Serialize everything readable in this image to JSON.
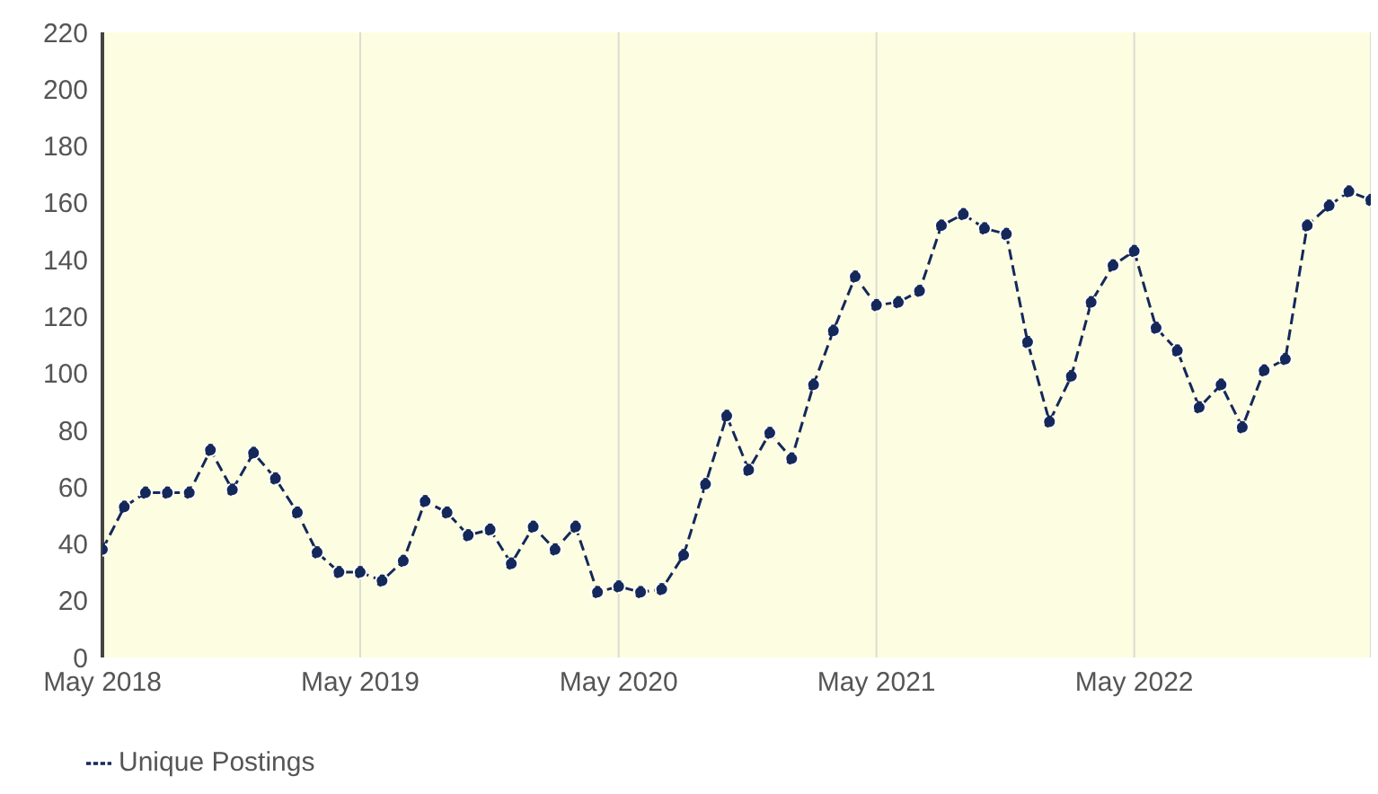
{
  "chart_data": {
    "type": "line",
    "x": [
      "2018-05",
      "2018-06",
      "2018-07",
      "2018-08",
      "2018-09",
      "2018-10",
      "2018-11",
      "2018-12",
      "2019-01",
      "2019-02",
      "2019-03",
      "2019-04",
      "2019-05",
      "2019-06",
      "2019-07",
      "2019-08",
      "2019-09",
      "2019-10",
      "2019-11",
      "2019-12",
      "2020-01",
      "2020-02",
      "2020-03",
      "2020-04",
      "2020-05",
      "2020-06",
      "2020-07",
      "2020-08",
      "2020-09",
      "2020-10",
      "2020-11",
      "2020-12",
      "2021-01",
      "2021-02",
      "2021-03",
      "2021-04",
      "2021-05",
      "2021-06",
      "2021-07",
      "2021-08",
      "2021-09",
      "2021-10",
      "2021-11",
      "2021-12",
      "2022-01",
      "2022-02",
      "2022-03",
      "2022-04",
      "2022-05",
      "2022-06",
      "2022-07",
      "2022-08",
      "2022-09",
      "2022-10",
      "2022-11",
      "2022-12",
      "2023-01",
      "2023-02",
      "2023-03",
      "2023-04"
    ],
    "series": [
      {
        "name": "Unique Postings",
        "color": "#14285a",
        "values": [
          38,
          53,
          58,
          58,
          58,
          73,
          59,
          72,
          63,
          51,
          37,
          30,
          30,
          27,
          34,
          55,
          51,
          43,
          45,
          33,
          46,
          38,
          46,
          23,
          25,
          23,
          24,
          36,
          61,
          85,
          66,
          79,
          70,
          96,
          115,
          134,
          124,
          125,
          129,
          152,
          156,
          151,
          149,
          111,
          83,
          99,
          125,
          138,
          143,
          116,
          108,
          88,
          96,
          81,
          101,
          105,
          152,
          159,
          164,
          161
        ]
      }
    ],
    "xlim": [
      "2018-05",
      "2023-04"
    ],
    "xticks": [
      {
        "value": "2018-05",
        "label": "May 2018"
      },
      {
        "value": "2019-05",
        "label": "May 2019"
      },
      {
        "value": "2020-05",
        "label": "May 2020"
      },
      {
        "value": "2021-05",
        "label": "May 2021"
      },
      {
        "value": "2022-05",
        "label": "May 2022"
      }
    ],
    "ylim": [
      0,
      220
    ],
    "yticks": [
      0,
      20,
      40,
      60,
      80,
      100,
      120,
      140,
      160,
      180,
      200,
      220
    ],
    "grid": "x",
    "legend": "bottom left",
    "marker": "circle",
    "line_style": "dashed"
  }
}
